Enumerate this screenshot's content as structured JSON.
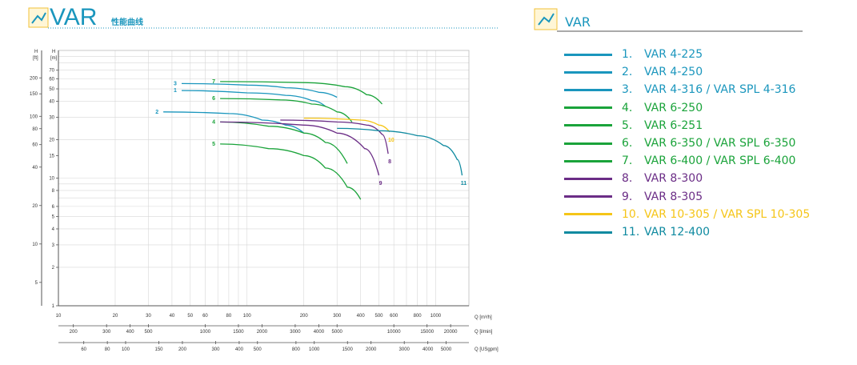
{
  "header_left": {
    "title": "VAR",
    "subtitle": "性能曲线"
  },
  "header_right": {
    "title": "VAR"
  },
  "colors": {
    "blue": "#1a96bd",
    "green": "#1aa33a",
    "purple": "#6b2d86",
    "yellow": "#f5c518",
    "teal": "#0f8aa0",
    "grid": "#d7d7d7",
    "axis": "#555555"
  },
  "axes": {
    "h_ft_label_top": "H",
    "h_ft_label_unit": "[ft]",
    "h_m_label_top": "H",
    "h_m_label_unit": "[m]",
    "q_m3h_label": "Q [m³/h]",
    "q_lmin_label": "Q [l/min]",
    "q_usgpm_label": "Q [USgpm]"
  },
  "chart_data": {
    "type": "line",
    "xscale": "log",
    "yscale": "log",
    "xlim": [
      10,
      1500
    ],
    "ylim_m": [
      1,
      100
    ],
    "x_ticks_m3h": [
      "10",
      "20",
      "30",
      "40",
      "50",
      "60",
      "80",
      "100",
      "200",
      "300",
      "400",
      "500",
      "600",
      "800",
      "1000"
    ],
    "y_ticks_m": [
      "1",
      "2",
      "3",
      "4",
      "5",
      "6",
      "8",
      "10",
      "15",
      "20",
      "30",
      "40",
      "50",
      "60",
      "70"
    ],
    "y_ticks_ft": [
      "5",
      "10",
      "20",
      "40",
      "60",
      "80",
      "100",
      "150",
      "200"
    ],
    "q_lmin_ticks": [
      "200",
      "300",
      "400",
      "500",
      "1000",
      "1500",
      "2000",
      "3000",
      "4000",
      "5000",
      "10000",
      "15000",
      "20000"
    ],
    "q_usgpm_ticks": [
      "60",
      "80",
      "100",
      "150",
      "200",
      "300",
      "400",
      "500",
      "800",
      "1000",
      "1500",
      "2000",
      "3000",
      "4000",
      "5000"
    ],
    "grid": true,
    "series": [
      {
        "id": "1",
        "label": "1.",
        "name": "VAR 4-225",
        "color": "blue",
        "points": [
          [
            45,
            48.5
          ],
          [
            100,
            46.5
          ],
          [
            160,
            44.5
          ],
          [
            220,
            40.5
          ],
          [
            260,
            36.5
          ]
        ]
      },
      {
        "id": "2",
        "label": "2.",
        "name": "VAR 4-250",
        "color": "blue",
        "points": [
          [
            36,
            33
          ],
          [
            80,
            32
          ],
          [
            120,
            28.5
          ],
          [
            160,
            26
          ],
          [
            200,
            22.5
          ]
        ]
      },
      {
        "id": "3",
        "label": "3.",
        "name": "VAR 4-316 / VAR SPL 4-316",
        "color": "blue",
        "points": [
          [
            45,
            55
          ],
          [
            100,
            53.5
          ],
          [
            160,
            51
          ],
          [
            240,
            47
          ],
          [
            300,
            43
          ]
        ]
      },
      {
        "id": "4",
        "label": "4.",
        "name": "VAR 6-250",
        "color": "green",
        "points": [
          [
            72,
            27.5
          ],
          [
            130,
            25.5
          ],
          [
            200,
            22.5
          ],
          [
            260,
            19
          ],
          [
            340,
            13
          ]
        ]
      },
      {
        "id": "5",
        "label": "5.",
        "name": "VAR 6-251",
        "color": "green",
        "points": [
          [
            72,
            18.5
          ],
          [
            130,
            17
          ],
          [
            200,
            15
          ],
          [
            260,
            12
          ],
          [
            340,
            8.5
          ],
          [
            400,
            6.8
          ]
        ]
      },
      {
        "id": "6",
        "label": "6.",
        "name": "VAR 6-350 / VAR SPL 6-350",
        "color": "green",
        "points": [
          [
            72,
            42
          ],
          [
            150,
            41
          ],
          [
            220,
            38
          ],
          [
            300,
            33
          ],
          [
            360,
            27.5
          ]
        ]
      },
      {
        "id": "7",
        "label": "7.",
        "name": "VAR 6-400 / VAR SPL 6-400",
        "color": "green",
        "points": [
          [
            72,
            57
          ],
          [
            200,
            56
          ],
          [
            330,
            52
          ],
          [
            430,
            45
          ],
          [
            520,
            38
          ]
        ]
      },
      {
        "id": "8",
        "label": "8.",
        "name": "VAR 8-300",
        "color": "purple",
        "points": [
          [
            150,
            28.5
          ],
          [
            300,
            27.5
          ],
          [
            430,
            26
          ],
          [
            520,
            22
          ],
          [
            560,
            15.5
          ]
        ]
      },
      {
        "id": "9",
        "label": "9.",
        "name": "VAR 8-305",
        "color": "purple",
        "points": [
          [
            72,
            27.5
          ],
          [
            200,
            26
          ],
          [
            300,
            22.5
          ],
          [
            420,
            17
          ],
          [
            500,
            10.5
          ]
        ]
      },
      {
        "id": "10",
        "label": "10.",
        "name": "VAR 10-305 / VAR SPL 10-305",
        "color": "yellow",
        "points": [
          [
            200,
            29.5
          ],
          [
            400,
            28.5
          ],
          [
            500,
            26
          ],
          [
            570,
            23
          ]
        ]
      },
      {
        "id": "11",
        "label": "11.",
        "name": "VAR 12-400",
        "color": "teal",
        "points": [
          [
            300,
            24.5
          ],
          [
            500,
            23.5
          ],
          [
            800,
            21.5
          ],
          [
            1100,
            18
          ],
          [
            1300,
            14
          ],
          [
            1380,
            10.5
          ]
        ]
      }
    ]
  }
}
